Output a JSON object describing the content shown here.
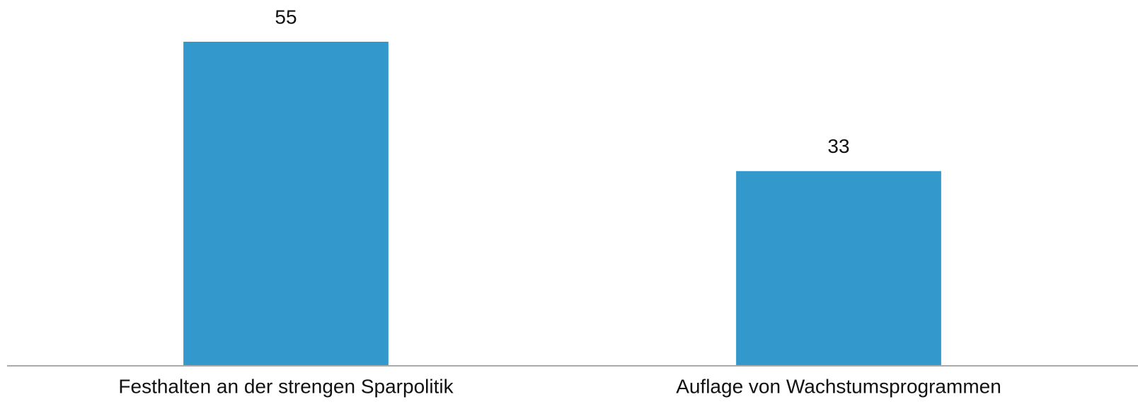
{
  "chart_data": {
    "type": "bar",
    "categories": [
      "Festhalten an der strengen Sparpolitik",
      "Auflage von Wachstumsprogrammen"
    ],
    "values": [
      55,
      33
    ],
    "color": "#3399cc"
  }
}
